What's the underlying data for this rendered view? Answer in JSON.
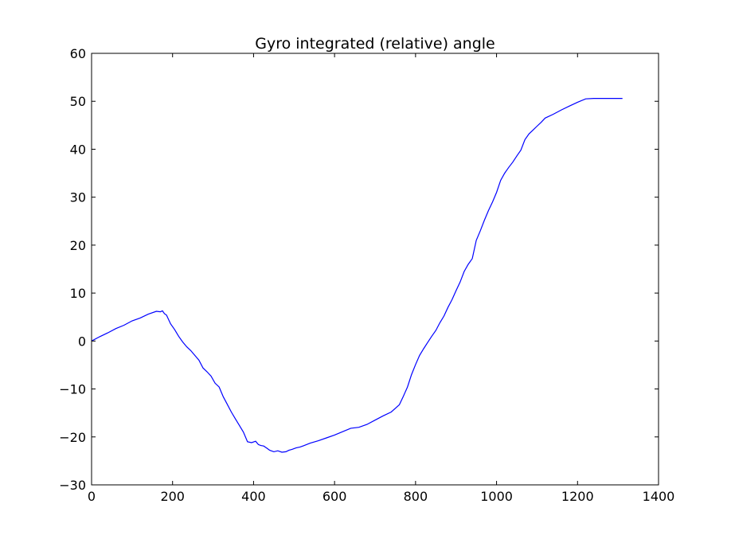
{
  "chart_data": {
    "type": "line",
    "title": "Gyro integrated (relative) angle",
    "xlabel": "",
    "ylabel": "",
    "xlim": [
      0,
      1400
    ],
    "ylim": [
      -30,
      60
    ],
    "x_ticks": [
      "0",
      "200",
      "400",
      "600",
      "800",
      "1000",
      "1200",
      "1400"
    ],
    "y_ticks": [
      "−30",
      "−20",
      "−10",
      "0",
      "10",
      "20",
      "30",
      "40",
      "50",
      "60"
    ],
    "x_tick_values": [
      0,
      200,
      400,
      600,
      800,
      1000,
      1200,
      1400
    ],
    "y_tick_values": [
      -30,
      -20,
      -10,
      0,
      10,
      20,
      30,
      40,
      50,
      60
    ],
    "grid": false,
    "line_color": "#0000ff",
    "series": [
      {
        "x": [
          0,
          20,
          40,
          60,
          80,
          100,
          120,
          140,
          160,
          170,
          175,
          180,
          185,
          195,
          205,
          215,
          225,
          235,
          245,
          255,
          265,
          275,
          285,
          295,
          305,
          315,
          325,
          335,
          345,
          355,
          365,
          375,
          385,
          395,
          405,
          412,
          418,
          425,
          432,
          440,
          450,
          460,
          470,
          480,
          487,
          495,
          505,
          515,
          525,
          540,
          560,
          580,
          600,
          620,
          640,
          660,
          680,
          700,
          720,
          740,
          760,
          770,
          780,
          790,
          800,
          810,
          820,
          830,
          840,
          850,
          860,
          870,
          880,
          890,
          900,
          910,
          920,
          930,
          940,
          950,
          960,
          970,
          980,
          990,
          1000,
          1010,
          1020,
          1030,
          1040,
          1050,
          1060,
          1070,
          1080,
          1090,
          1100,
          1110,
          1120,
          1140,
          1160,
          1180,
          1200,
          1220,
          1240,
          1260,
          1280,
          1300,
          1311
        ],
        "y": [
          0.0,
          0.9,
          1.7,
          2.6,
          3.3,
          4.2,
          4.8,
          5.6,
          6.2,
          6.1,
          6.3,
          5.7,
          5.4,
          3.6,
          2.4,
          1.0,
          -0.2,
          -1.2,
          -2.0,
          -3.0,
          -4.0,
          -5.6,
          -6.4,
          -7.3,
          -8.8,
          -9.6,
          -11.6,
          -13.2,
          -14.8,
          -16.2,
          -17.6,
          -19.0,
          -21.0,
          -21.2,
          -20.9,
          -21.6,
          -21.8,
          -21.9,
          -22.3,
          -22.8,
          -23.1,
          -22.9,
          -23.2,
          -23.1,
          -22.8,
          -22.6,
          -22.3,
          -22.1,
          -21.8,
          -21.3,
          -20.8,
          -20.2,
          -19.6,
          -18.9,
          -18.2,
          -18.0,
          -17.4,
          -16.5,
          -15.6,
          -14.8,
          -13.3,
          -11.5,
          -9.6,
          -7.0,
          -4.9,
          -3.0,
          -1.6,
          -0.3,
          1.0,
          2.2,
          3.8,
          5.2,
          7.0,
          8.6,
          10.5,
          12.3,
          14.5,
          16.0,
          17.2,
          21.0,
          23.0,
          25.2,
          27.2,
          29.0,
          31.0,
          33.5,
          35.0,
          36.2,
          37.3,
          38.6,
          39.8,
          42.0,
          43.2,
          44.0,
          44.8,
          45.6,
          46.5,
          47.3,
          48.2,
          49.0,
          49.8,
          50.5,
          50.6,
          50.6,
          50.6,
          50.6,
          50.6
        ]
      }
    ]
  }
}
